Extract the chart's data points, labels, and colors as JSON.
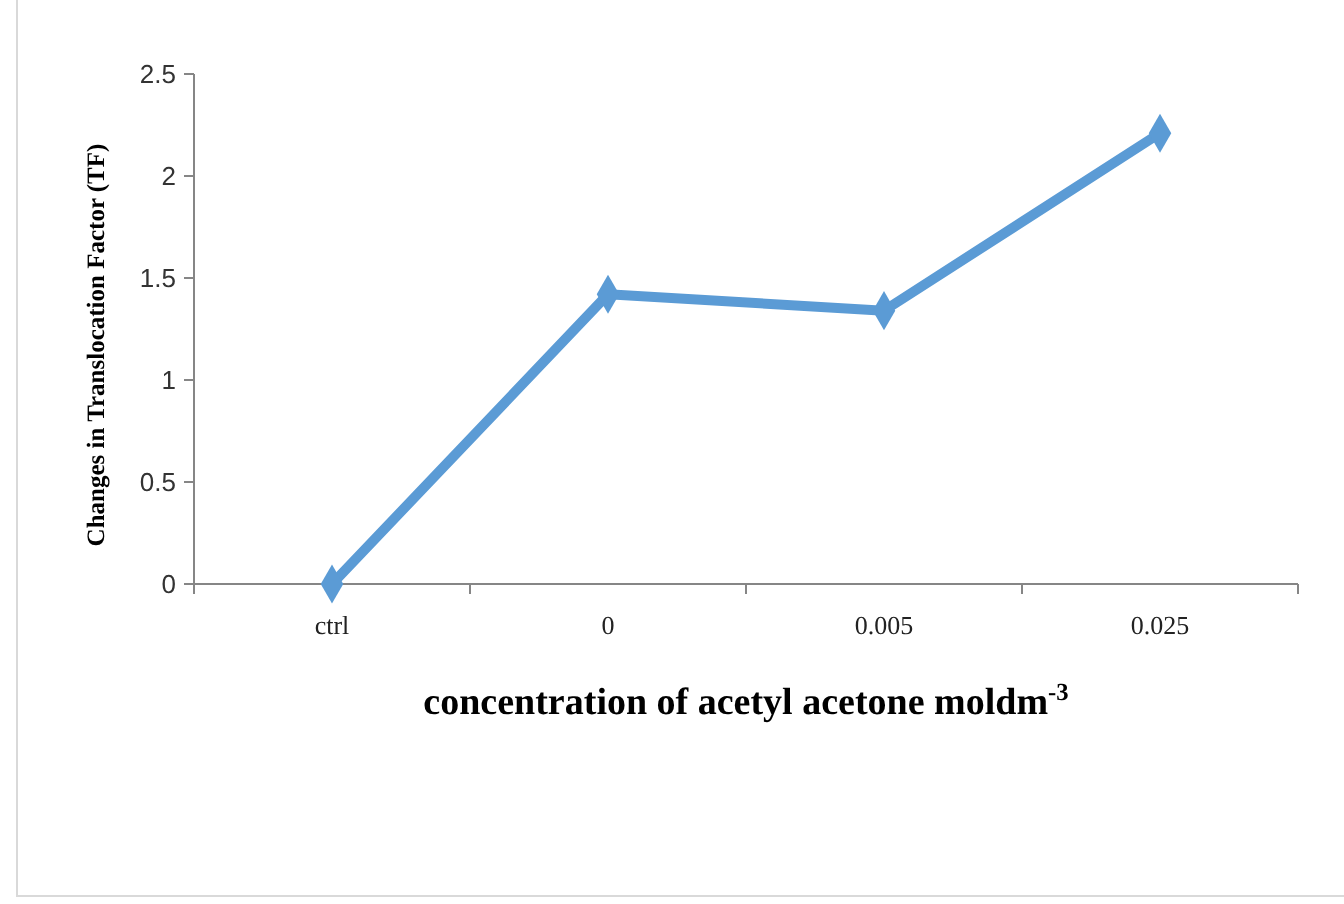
{
  "chart_data": {
    "type": "line",
    "categories": [
      "ctrl",
      "0",
      "0.005",
      "0.025"
    ],
    "series": [
      {
        "color": "#5b9bd5",
        "values": [
          0,
          1.42,
          1.34,
          2.21
        ]
      }
    ],
    "ylabel": "Changes in Translocation Factor (TF)",
    "xlabel": "concentration of acetyl acetone moldm$^{-3}$",
    "ylim": [
      0,
      2.5
    ],
    "yticks": [
      0,
      {
        "value": 0.5,
        "label": "0.5"
      },
      1,
      {
        "value": 1.5,
        "label": "1.5"
      },
      2,
      {
        "value": 2.5,
        "label": "2.5"
      }
    ],
    "grid": false,
    "marker": "diamond",
    "line_style": "solid"
  }
}
